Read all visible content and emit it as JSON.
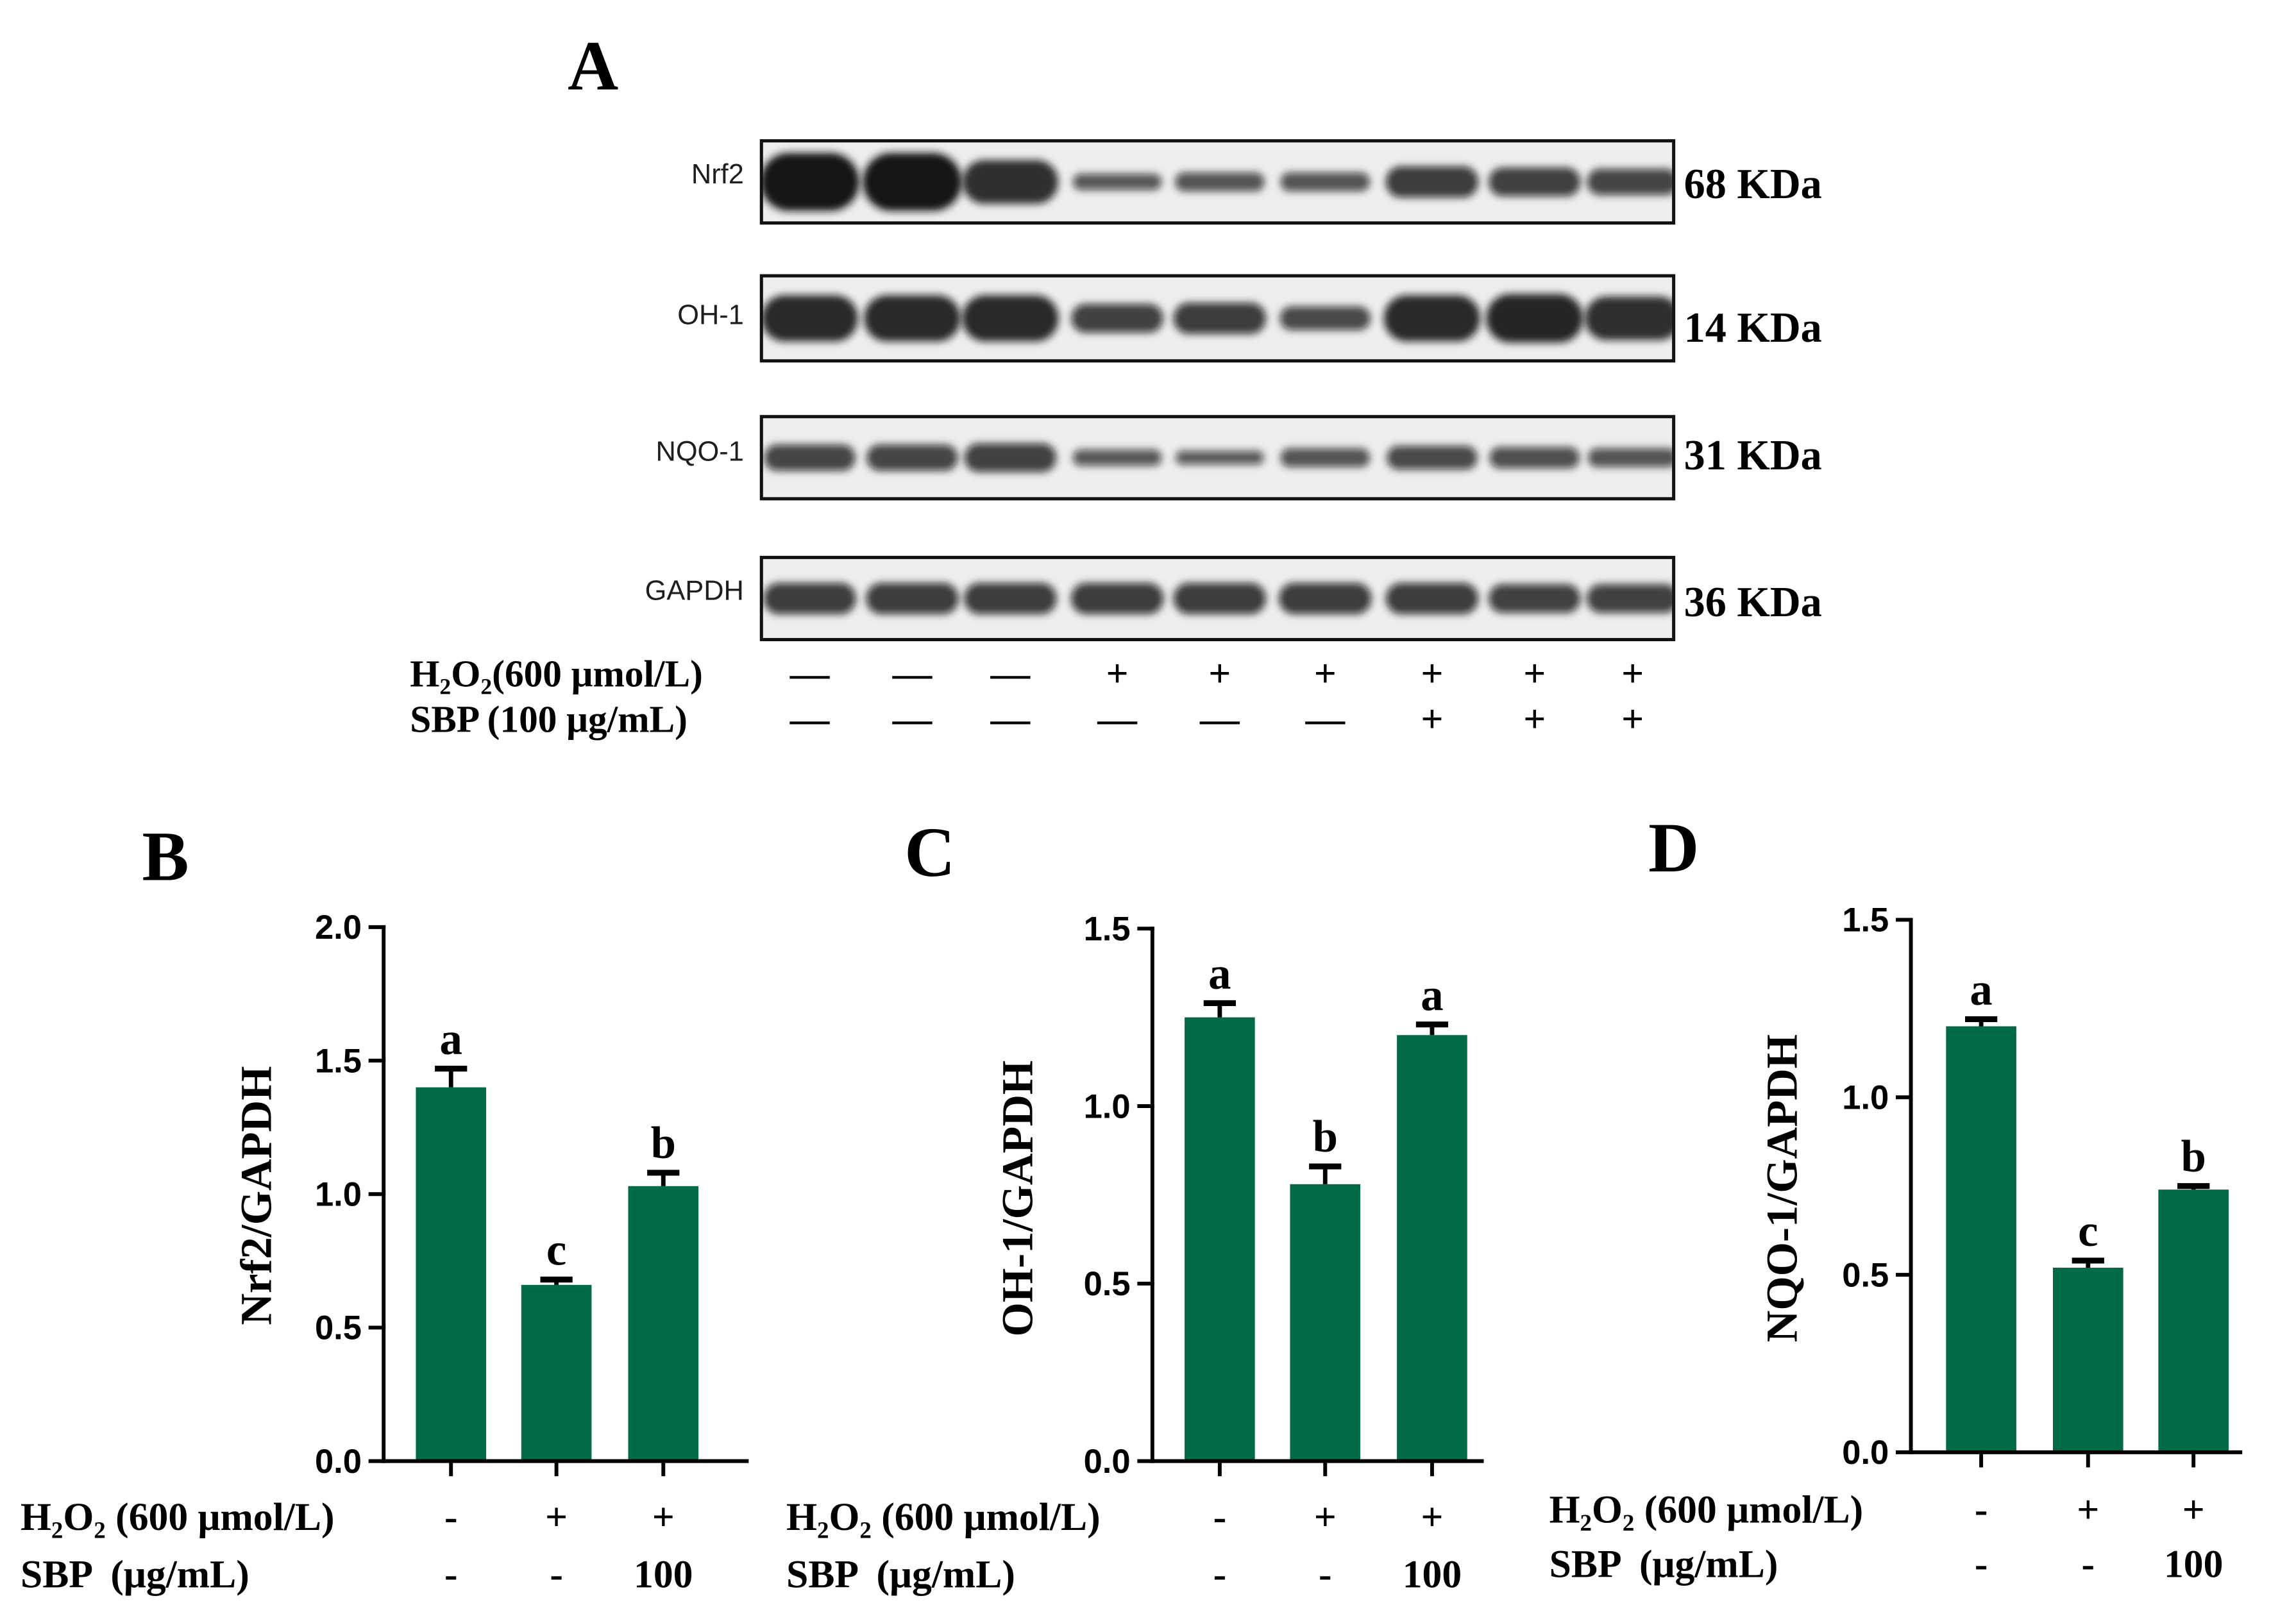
{
  "panel_a": {
    "label": "A",
    "band_color": "#151515",
    "blots": [
      {
        "protein": "Nrf2",
        "size": "68 KDa",
        "band_strength": [
          1.0,
          1.0,
          0.7,
          0.15,
          0.2,
          0.2,
          0.45,
          0.4,
          0.35
        ]
      },
      {
        "protein": "OH-1",
        "size": "14 KDa",
        "band_strength": [
          0.75,
          0.75,
          0.75,
          0.4,
          0.45,
          0.3,
          0.75,
          0.8,
          0.7
        ]
      },
      {
        "protein": "NQO-1",
        "size": "31 KDa",
        "band_strength": [
          0.35,
          0.35,
          0.4,
          0.15,
          0.1,
          0.2,
          0.3,
          0.25,
          0.2
        ]
      },
      {
        "protein": "GAPDH",
        "size": "36 KDa",
        "band_strength": [
          0.45,
          0.45,
          0.45,
          0.45,
          0.45,
          0.45,
          0.45,
          0.4,
          0.4
        ]
      }
    ],
    "treatments": [
      {
        "label": "H₂O₂(600 μmol/L)",
        "lanes": [
          "—",
          "—",
          "—",
          "+",
          "+",
          "+",
          "+",
          "+",
          "+"
        ]
      },
      {
        "label": "SBP (100 μg/mL)",
        "lanes": [
          "—",
          "—",
          "—",
          "—",
          "—",
          "—",
          "+",
          "+",
          "+"
        ]
      }
    ]
  },
  "chart_data": [
    {
      "panel": "B",
      "type": "bar",
      "ylabel": "Nrf2/GAPDH",
      "ylim": [
        0,
        2.0
      ],
      "yticks": [
        "0.0",
        "0.5",
        "1.0",
        "1.5",
        "2.0"
      ],
      "values": [
        1.4,
        0.66,
        1.03
      ],
      "errors": [
        0.07,
        0.02,
        0.05
      ],
      "significance": [
        "a",
        "c",
        "b"
      ],
      "treatments": [
        {
          "label": "H₂O₂ (600 μmol/L)",
          "values": [
            "-",
            "+",
            "+"
          ]
        },
        {
          "label": "SBP  (μg/mL)",
          "values": [
            "-",
            "-",
            "100"
          ]
        }
      ],
      "bar_color": "#006B46",
      "grid": false
    },
    {
      "panel": "C",
      "type": "bar",
      "ylabel": "OH-1/GAPDH",
      "ylim": [
        0,
        1.5
      ],
      "yticks": [
        "0.0",
        "0.5",
        "1.0",
        "1.5"
      ],
      "values": [
        1.25,
        0.78,
        1.2
      ],
      "errors": [
        0.04,
        0.05,
        0.03
      ],
      "significance": [
        "a",
        "b",
        "a"
      ],
      "treatments": [
        {
          "label": "H₂O₂ (600 μmol/L)",
          "values": [
            "-",
            "+",
            "+"
          ]
        },
        {
          "label": "SBP  (μg/mL)",
          "values": [
            "-",
            "-",
            "100"
          ]
        }
      ],
      "bar_color": "#006B46",
      "grid": false
    },
    {
      "panel": "D",
      "type": "bar",
      "ylabel": "NQO-1/GAPDH",
      "ylim": [
        0,
        1.5
      ],
      "yticks": [
        "0.0",
        "0.5",
        "1.0",
        "1.5"
      ],
      "values": [
        1.2,
        0.52,
        0.74
      ],
      "errors": [
        0.02,
        0.02,
        0.01
      ],
      "significance": [
        "a",
        "c",
        "b"
      ],
      "treatments": [
        {
          "label": "H₂O₂ (600 μmol/L)",
          "values": [
            "-",
            "+",
            "+"
          ]
        },
        {
          "label": "SBP  (μg/mL)",
          "values": [
            "-",
            "-",
            "100"
          ]
        }
      ],
      "bar_color": "#006B46",
      "grid": false
    }
  ]
}
